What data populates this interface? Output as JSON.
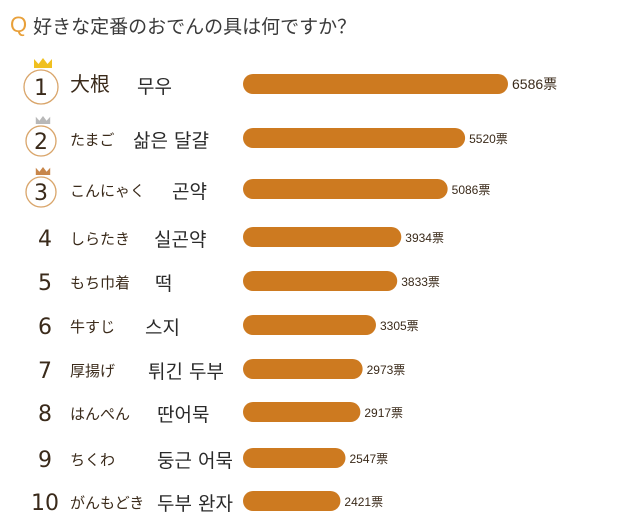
{
  "question": {
    "mark": "Q",
    "text": "好きな定番のおでんの具は何ですか？"
  },
  "colors": {
    "bar": "#cd7a20",
    "crown_gold": "#f0c020",
    "crown_silver": "#b8b8b8",
    "crown_bronze": "#c8864a",
    "q_mark": "#e8a03a"
  },
  "chart_data": {
    "type": "bar",
    "orientation": "horizontal",
    "categories": [
      "大根",
      "たまご",
      "こんにゃく",
      "しらたき",
      "もち巾着",
      "牛すじ",
      "厚揚げ",
      "はんぺん",
      "ちくわ",
      "がんもどき"
    ],
    "categories_ko": [
      "무우",
      "삶은 달걀",
      "곤약",
      "실곤약",
      "떡",
      "스지",
      "튀긴 두부",
      "딴어묵",
      "둥근 어묵",
      "두부 완자"
    ],
    "ranks": [
      "1",
      "2",
      "3",
      "4",
      "5",
      "6",
      "7",
      "8",
      "9",
      "10"
    ],
    "values": [
      6586,
      5520,
      5086,
      3934,
      3833,
      3305,
      2973,
      2917,
      2547,
      2421
    ],
    "value_labels": [
      "6586票",
      "5520票",
      "5086票",
      "3934票",
      "3833票",
      "3305票",
      "2973票",
      "2917票",
      "2547票",
      "2421票"
    ],
    "unit": "票",
    "crowned_ranks": 3
  }
}
